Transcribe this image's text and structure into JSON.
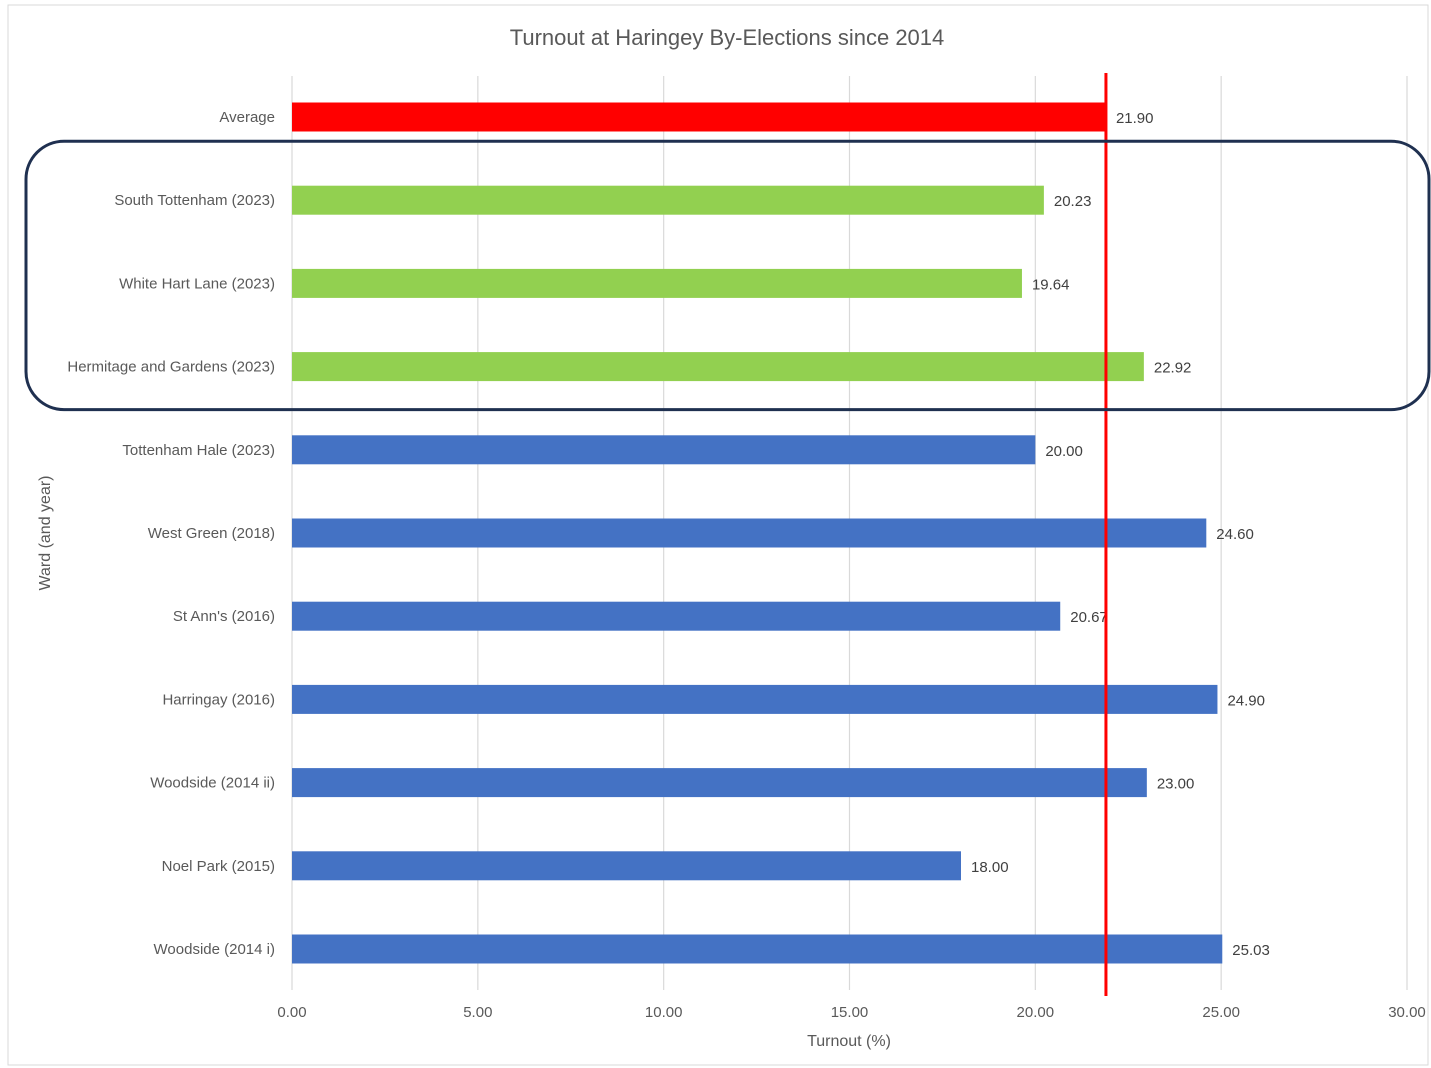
{
  "chart_data": {
    "type": "bar",
    "orientation": "horizontal",
    "title": "Turnout at Haringey By-Elections since 2014",
    "xlabel": "Turnout (%)",
    "ylabel": "Ward (and year)",
    "xlim": [
      0,
      30
    ],
    "x_ticks": [
      "0.00",
      "5.00",
      "10.00",
      "15.00",
      "20.00",
      "25.00",
      "30.00"
    ],
    "grid": "vertical",
    "legend": "none",
    "categories": [
      "Average",
      "South Tottenham (2023)",
      "White Hart Lane (2023)",
      "Hermitage and Gardens (2023)",
      "Tottenham Hale (2023)",
      "West Green (2018)",
      "St Ann's (2016)",
      "Harringay (2016)",
      "Woodside (2014 ii)",
      "Noel Park (2015)",
      "Woodside (2014 i)"
    ],
    "values": [
      21.9,
      20.23,
      19.64,
      22.92,
      20.0,
      24.6,
      20.67,
      24.9,
      23.0,
      18.0,
      25.03
    ],
    "value_labels": [
      "21.90",
      "20.23",
      "19.64",
      "22.92",
      "20.00",
      "24.60",
      "20.67",
      "24.90",
      "23.00",
      "18.00",
      "25.03"
    ],
    "colors": [
      "#FF0000",
      "#92D050",
      "#92D050",
      "#92D050",
      "#4472C4",
      "#4472C4",
      "#4472C4",
      "#4472C4",
      "#4472C4",
      "#4472C4",
      "#4472C4"
    ],
    "reference_line": {
      "value": 21.9,
      "color": "#FF0000"
    },
    "highlight_group": [
      "South Tottenham (2023)",
      "White Hart Lane (2023)",
      "Hermitage and Gardens (2023)"
    ],
    "highlight_color": "#1F3050",
    "gridline_color": "#D9D9D9"
  }
}
